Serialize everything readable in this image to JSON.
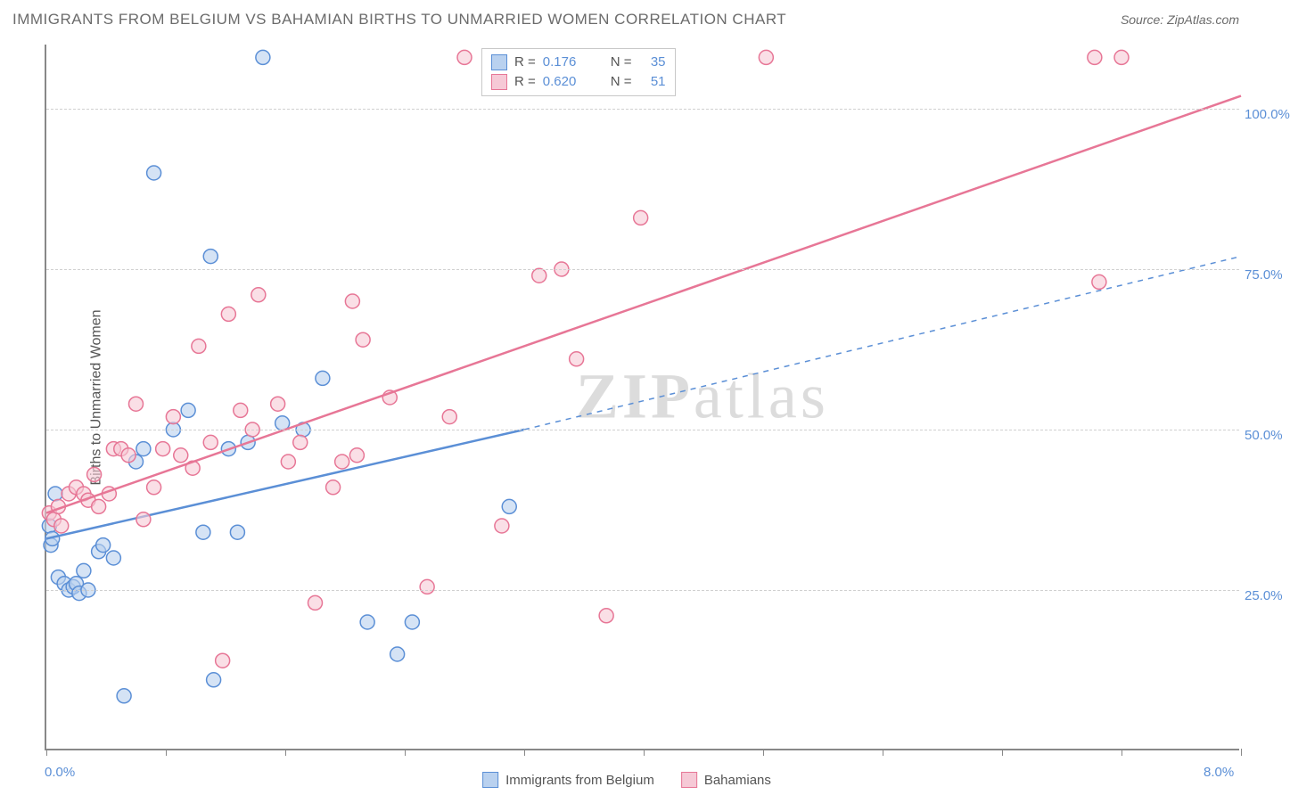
{
  "title": "IMMIGRANTS FROM BELGIUM VS BAHAMIAN BIRTHS TO UNMARRIED WOMEN CORRELATION CHART",
  "source": "Source: ZipAtlas.com",
  "watermark": "ZIPatlas",
  "ylabel": "Births to Unmarried Women",
  "chart": {
    "type": "scatter",
    "xlim": [
      0,
      8
    ],
    "ylim": [
      0,
      110
    ],
    "x_tick_labels": {
      "0": "0.0%",
      "8": "8.0%"
    },
    "x_minor_ticks": [
      0,
      0.8,
      1.6,
      2.4,
      3.2,
      4.0,
      4.8,
      5.6,
      6.4,
      7.2,
      8.0
    ],
    "y_gridlines": [
      25,
      50,
      75,
      100
    ],
    "y_tick_labels": {
      "25": "25.0%",
      "50": "50.0%",
      "75": "75.0%",
      "100": "100.0%"
    },
    "background_color": "#ffffff",
    "grid_color": "#d0d0d0",
    "axis_color": "#888888",
    "marker_radius": 8,
    "marker_stroke_width": 1.5,
    "marker_fill_opacity": 0.25,
    "line_width": 2.5,
    "series": [
      {
        "name": "Immigrants from Belgium",
        "color_stroke": "#5b8fd6",
        "color_fill": "#b9d1ef",
        "R": "0.176",
        "N": "35",
        "trend": {
          "x1": 0,
          "y1": 33,
          "x2": 3.2,
          "y2": 50,
          "dashed_to_x": 8,
          "dashed_to_y": 77
        },
        "points": [
          [
            0.02,
            35
          ],
          [
            0.03,
            32
          ],
          [
            0.04,
            33
          ],
          [
            0.06,
            40
          ],
          [
            0.08,
            27
          ],
          [
            0.12,
            26
          ],
          [
            0.15,
            25
          ],
          [
            0.18,
            25.5
          ],
          [
            0.2,
            26
          ],
          [
            0.22,
            24.5
          ],
          [
            0.25,
            28
          ],
          [
            0.28,
            25
          ],
          [
            0.35,
            31
          ],
          [
            0.38,
            32
          ],
          [
            0.45,
            30
          ],
          [
            0.52,
            8.5
          ],
          [
            0.6,
            45
          ],
          [
            0.65,
            47
          ],
          [
            0.72,
            90
          ],
          [
            0.85,
            50
          ],
          [
            0.95,
            53
          ],
          [
            1.05,
            34
          ],
          [
            1.1,
            77
          ],
          [
            1.12,
            11
          ],
          [
            1.22,
            47
          ],
          [
            1.28,
            34
          ],
          [
            1.35,
            48
          ],
          [
            1.45,
            108
          ],
          [
            1.58,
            51
          ],
          [
            1.72,
            50
          ],
          [
            1.85,
            58
          ],
          [
            2.15,
            20
          ],
          [
            2.35,
            15
          ],
          [
            2.45,
            20
          ],
          [
            3.1,
            38
          ]
        ]
      },
      {
        "name": "Bahamians",
        "color_stroke": "#e77696",
        "color_fill": "#f6c9d6",
        "R": "0.620",
        "N": "51",
        "trend": {
          "x1": 0,
          "y1": 37,
          "x2": 8,
          "y2": 102
        },
        "points": [
          [
            0.02,
            37
          ],
          [
            0.05,
            36
          ],
          [
            0.08,
            38
          ],
          [
            0.1,
            35
          ],
          [
            0.15,
            40
          ],
          [
            0.2,
            41
          ],
          [
            0.25,
            40
          ],
          [
            0.28,
            39
          ],
          [
            0.32,
            43
          ],
          [
            0.35,
            38
          ],
          [
            0.42,
            40
          ],
          [
            0.45,
            47
          ],
          [
            0.5,
            47
          ],
          [
            0.55,
            46
          ],
          [
            0.6,
            54
          ],
          [
            0.65,
            36
          ],
          [
            0.72,
            41
          ],
          [
            0.78,
            47
          ],
          [
            0.85,
            52
          ],
          [
            0.9,
            46
          ],
          [
            0.98,
            44
          ],
          [
            1.02,
            63
          ],
          [
            1.1,
            48
          ],
          [
            1.18,
            14
          ],
          [
            1.22,
            68
          ],
          [
            1.3,
            53
          ],
          [
            1.38,
            50
          ],
          [
            1.42,
            71
          ],
          [
            1.55,
            54
          ],
          [
            1.62,
            45
          ],
          [
            1.7,
            48
          ],
          [
            1.8,
            23
          ],
          [
            1.92,
            41
          ],
          [
            1.98,
            45
          ],
          [
            2.05,
            70
          ],
          [
            2.08,
            46
          ],
          [
            2.12,
            64
          ],
          [
            2.3,
            55
          ],
          [
            2.55,
            25.5
          ],
          [
            2.7,
            52
          ],
          [
            2.8,
            108
          ],
          [
            3.05,
            35
          ],
          [
            3.3,
            74
          ],
          [
            3.45,
            75
          ],
          [
            3.55,
            61
          ],
          [
            3.75,
            21
          ],
          [
            3.98,
            83
          ],
          [
            4.82,
            108
          ],
          [
            7.02,
            108
          ],
          [
            7.2,
            108
          ],
          [
            7.05,
            73
          ]
        ]
      }
    ]
  },
  "colors": {
    "text_gray": "#6b6b6b",
    "label_blue": "#5b8fd6"
  }
}
